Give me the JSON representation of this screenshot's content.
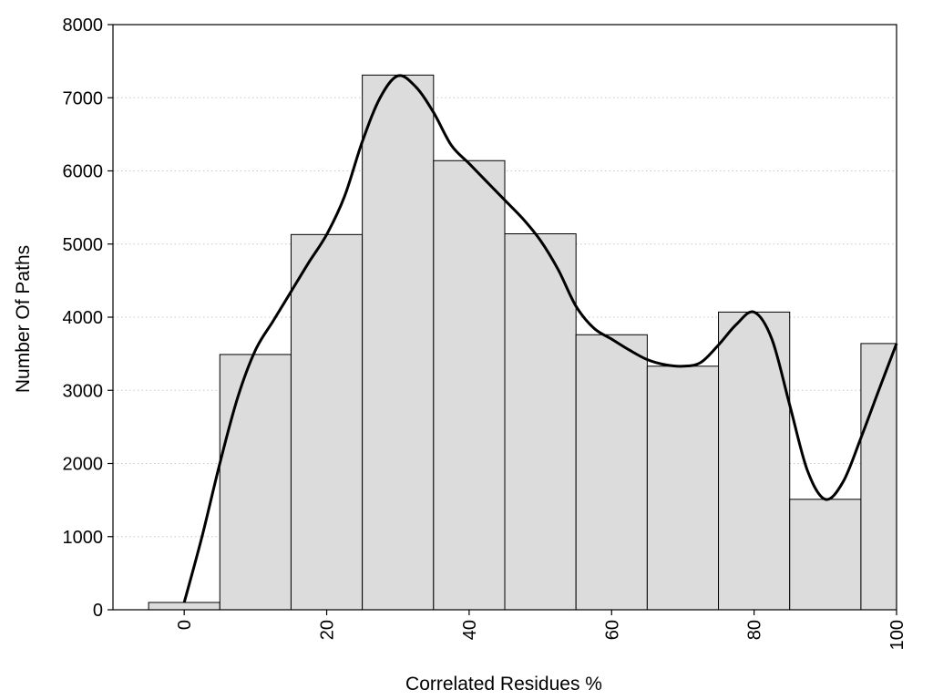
{
  "chart_data": {
    "type": "bar",
    "title": "",
    "xlabel": "Correlated Residues %",
    "ylabel": "Number Of Paths",
    "xlim": [
      -10,
      100
    ],
    "ylim": [
      0,
      8000
    ],
    "x_ticks": [
      0,
      20,
      40,
      60,
      80,
      100
    ],
    "x_tick_labels": [
      "0",
      "20",
      "40",
      "60",
      "80",
      "100"
    ],
    "y_ticks": [
      0,
      1000,
      2000,
      3000,
      4000,
      5000,
      6000,
      7000,
      8000
    ],
    "y_tick_labels": [
      "0",
      "1000",
      "2000",
      "3000",
      "4000",
      "5000",
      "6000",
      "7000",
      "8000"
    ],
    "grid": "horizontal dotted",
    "legend": "none",
    "bin_width": 10,
    "bin_centers": [
      0,
      10,
      20,
      30,
      40,
      50,
      60,
      70,
      80,
      90,
      100
    ],
    "values": [
      100,
      3490,
      5130,
      7310,
      6140,
      5140,
      3760,
      3330,
      4070,
      1510,
      3640
    ],
    "series": [
      {
        "type": "line",
        "x": [
          0,
          2.5,
          5,
          7.5,
          10,
          12.5,
          15,
          17.5,
          20,
          22.5,
          25,
          27.5,
          30,
          32.5,
          35,
          37.5,
          40,
          42.5,
          45,
          47.5,
          50,
          52.5,
          55,
          57.5,
          60,
          62.5,
          65,
          67.5,
          70,
          72.5,
          75,
          77.5,
          80,
          82.5,
          85,
          87.5,
          90,
          92.5,
          95,
          97.5,
          100
        ],
        "y": [
          100,
          1000,
          2000,
          2900,
          3550,
          3950,
          4350,
          4750,
          5130,
          5650,
          6400,
          7000,
          7300,
          7150,
          6800,
          6350,
          6100,
          5850,
          5600,
          5350,
          5050,
          4650,
          4150,
          3850,
          3700,
          3550,
          3420,
          3350,
          3330,
          3380,
          3620,
          3900,
          4070,
          3700,
          2800,
          1900,
          1510,
          1750,
          2350,
          3000,
          3640
        ],
        "color": "#000000"
      }
    ],
    "bar_fill": "#dcdcdc",
    "bar_stroke": "#000000"
  }
}
